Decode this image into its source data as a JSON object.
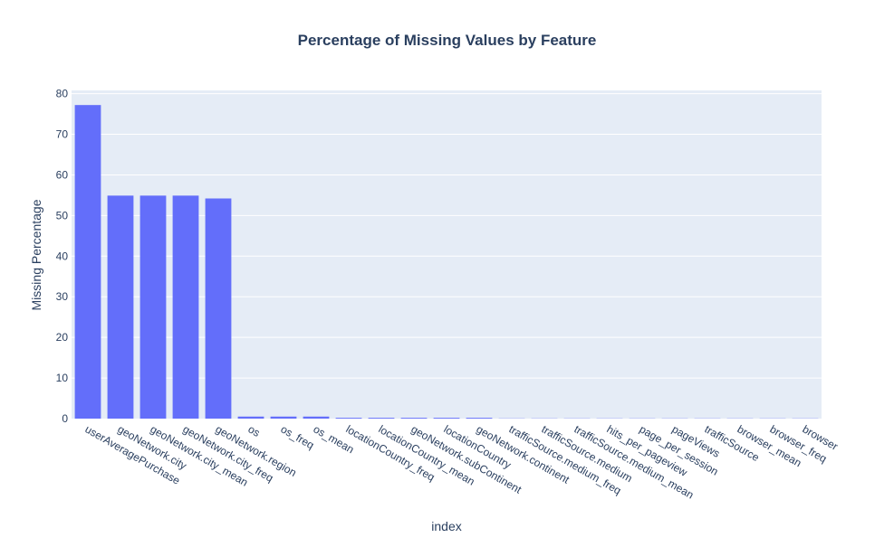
{
  "chart_data": {
    "type": "bar",
    "title": "Percentage of Missing Values by Feature",
    "xlabel": "index",
    "ylabel": "Missing Percentage",
    "ylim": [
      0,
      80
    ],
    "yticks": [
      0,
      10,
      20,
      30,
      40,
      50,
      60,
      70,
      80
    ],
    "grid": true,
    "categories": [
      "userAveragePurchase",
      "geoNetwork.city",
      "geoNetwork.city_mean",
      "geoNetwork.city_freq",
      "geoNetwork.region",
      "os",
      "os_freq",
      "os_mean",
      "locationCountry_freq",
      "locationCountry_mean",
      "geoNetwork.subContinent",
      "locationCountry",
      "geoNetwork.continent",
      "trafficSource.medium_freq",
      "trafficSource.medium",
      "trafficSource.medium_mean",
      "hits_per_pageview",
      "page_per_session",
      "pageViews",
      "trafficSource",
      "browser_mean",
      "browser_freq",
      "browser"
    ],
    "values": [
      77.2,
      54.9,
      54.9,
      54.9,
      54.2,
      0.5,
      0.5,
      0.5,
      0.2,
      0.2,
      0.2,
      0.2,
      0.2,
      0.05,
      0.05,
      0.05,
      0.05,
      0.05,
      0.05,
      0.05,
      0.05,
      0.05,
      0.05
    ],
    "colors": {
      "bar": "#636efa",
      "plot_bg": "#e5ecf6",
      "grid": "#ffffff",
      "text": "#2a3f5f",
      "title": "#2a3f5f"
    }
  }
}
